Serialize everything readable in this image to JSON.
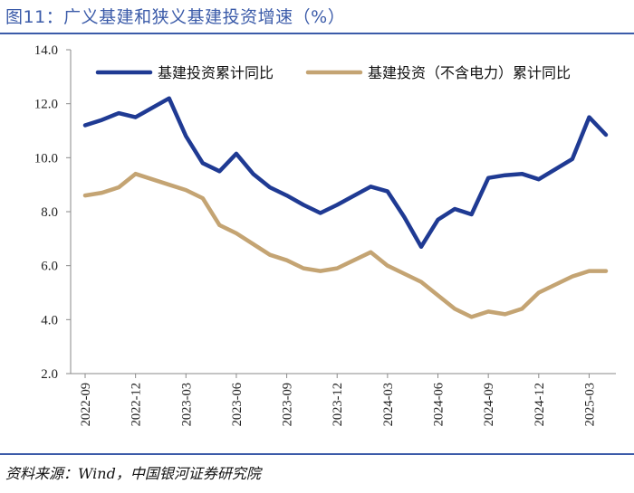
{
  "figure": {
    "title": "图11：广义基建和狭义基建投资增速（%）",
    "source": "资料来源：Wind，中国银河证券研究院"
  },
  "chart_data": {
    "type": "line",
    "title": "图11：广义基建和狭义基建投资增速（%）",
    "xlabel": "",
    "ylabel": "",
    "ylim": [
      2.0,
      14.0
    ],
    "yticks": [
      "2.0",
      "4.0",
      "6.0",
      "8.0",
      "10.0",
      "12.0",
      "14.0"
    ],
    "x": [
      "2022-09",
      "2022-10",
      "2022-11",
      "2022-12",
      "2023-01",
      "2023-02",
      "2023-03",
      "2023-04",
      "2023-05",
      "2023-06",
      "2023-07",
      "2023-08",
      "2023-09",
      "2023-10",
      "2023-11",
      "2023-12",
      "2024-01",
      "2024-02",
      "2024-03",
      "2024-04",
      "2024-05",
      "2024-06",
      "2024-07",
      "2024-08",
      "2024-09",
      "2024-10",
      "2024-11",
      "2024-12",
      "2025-01",
      "2025-02",
      "2025-03",
      "2025-04"
    ],
    "xtick_labels": [
      "2022-09",
      "2022-12",
      "2023-03",
      "2023-06",
      "2023-09",
      "2023-12",
      "2024-03",
      "2024-06",
      "2024-09",
      "2024-12",
      "2025-03"
    ],
    "series": [
      {
        "name": "基建投资累计同比",
        "color": "#1f3a93",
        "values": [
          11.2,
          11.4,
          11.65,
          11.5,
          null,
          12.2,
          10.8,
          9.8,
          9.5,
          10.15,
          9.4,
          8.9,
          8.6,
          8.25,
          7.95,
          8.25,
          null,
          8.93,
          8.75,
          7.8,
          6.7,
          7.7,
          8.1,
          7.9,
          9.25,
          9.35,
          9.4,
          9.2,
          null,
          9.95,
          11.5,
          10.85
        ]
      },
      {
        "name": "基建投资（不含电力）累计同比",
        "color": "#c4a473",
        "values": [
          8.6,
          8.7,
          8.9,
          9.4,
          null,
          9.0,
          8.8,
          8.5,
          7.5,
          7.2,
          6.8,
          6.4,
          6.2,
          5.9,
          5.8,
          5.9,
          null,
          6.5,
          6.0,
          5.7,
          5.4,
          4.9,
          4.4,
          4.1,
          4.3,
          4.2,
          4.4,
          5.0,
          null,
          5.6,
          5.8,
          5.8
        ]
      }
    ],
    "legend_position": "top"
  }
}
